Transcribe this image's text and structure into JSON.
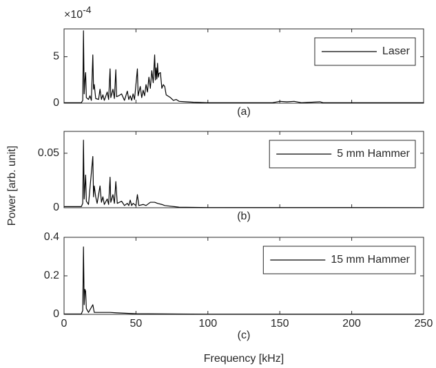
{
  "chart_data": [
    {
      "type": "line",
      "caption": "(a)",
      "y_multiplier": "×10",
      "y_multiplier_exponent": "-4",
      "x": [
        0,
        12,
        13,
        13.5,
        14,
        14.5,
        15,
        15.5,
        17,
        18,
        19,
        20,
        20.5,
        21,
        22,
        24,
        25,
        26,
        27,
        28,
        30,
        31,
        32,
        32.5,
        34,
        35,
        36,
        36.5,
        38,
        40,
        42,
        44,
        45,
        46,
        47,
        48,
        49,
        51,
        51.5,
        53,
        54,
        55,
        56,
        57,
        58,
        59,
        60,
        61,
        62,
        63,
        63.5,
        64,
        64.5,
        65,
        65.5,
        66,
        67,
        68,
        69,
        70,
        71,
        72,
        74,
        76,
        78,
        80,
        85,
        90,
        100,
        120,
        145,
        150,
        155,
        160,
        165,
        178,
        180,
        200,
        250
      ],
      "series": [
        {
          "name": "Laser",
          "color": "#000000",
          "values": [
            0.05,
            0.05,
            0.3,
            7.8,
            1.0,
            2.5,
            3.3,
            0.6,
            0.4,
            0.8,
            0.3,
            5.2,
            1.5,
            2.0,
            0.5,
            0.4,
            1.5,
            0.4,
            0.9,
            0.3,
            1.2,
            0.4,
            3.7,
            0.6,
            1.5,
            0.5,
            3.6,
            0.7,
            0.8,
            1.0,
            0.3,
            1.3,
            0.4,
            0.8,
            0.3,
            1.0,
            0.4,
            3.7,
            0.8,
            1.8,
            0.6,
            1.4,
            0.8,
            2.0,
            1.2,
            2.8,
            1.6,
            3.5,
            2.2,
            5.2,
            2.5,
            3.8,
            2.6,
            4.3,
            2.8,
            3.2,
            3.3,
            1.6,
            2.0,
            1.8,
            0.9,
            0.8,
            0.6,
            0.3,
            0.4,
            0.2,
            0.15,
            0.1,
            0.05,
            0.05,
            0.05,
            0.2,
            0.15,
            0.2,
            0.05,
            0.15,
            0.05,
            0.05,
            0.05
          ]
        }
      ],
      "xlim": [
        0,
        250
      ],
      "xticks": [
        0,
        50,
        100,
        150,
        200,
        250
      ],
      "show_xtick_labels": false,
      "ylim": [
        0,
        8
      ],
      "yticks": [
        0,
        5
      ],
      "legend": "upper right"
    },
    {
      "type": "line",
      "caption": "(b)",
      "ylabel": "Power [arb. unit]",
      "x": [
        0,
        12,
        13,
        13.5,
        14,
        14.5,
        15,
        15.5,
        16,
        17,
        20,
        20.5,
        21,
        22,
        23,
        24,
        25,
        26,
        27,
        28,
        30,
        31,
        32,
        32.5,
        34,
        35,
        36,
        37,
        40,
        42,
        44,
        45,
        46,
        47,
        48,
        50,
        51,
        52,
        55,
        57,
        60,
        63,
        65,
        68,
        70,
        80,
        100,
        250
      ],
      "series": [
        {
          "name": "5 mm Hammer",
          "color": "#000000",
          "values": [
            0.001,
            0.001,
            0.004,
            0.062,
            0.008,
            0.02,
            0.03,
            0.006,
            0.005,
            0.003,
            0.047,
            0.01,
            0.02,
            0.01,
            0.004,
            0.012,
            0.02,
            0.005,
            0.01,
            0.003,
            0.008,
            0.003,
            0.028,
            0.005,
            0.012,
            0.004,
            0.024,
            0.004,
            0.006,
            0.002,
            0.004,
            0.002,
            0.007,
            0.002,
            0.004,
            0.002,
            0.012,
            0.002,
            0.003,
            0.002,
            0.005,
            0.005,
            0.004,
            0.003,
            0.002,
            0.0005,
            0.0002,
            0.0001
          ]
        }
      ],
      "xlim": [
        0,
        250
      ],
      "xticks": [
        0,
        50,
        100,
        150,
        200,
        250
      ],
      "show_xtick_labels": false,
      "ylim": [
        0,
        0.07
      ],
      "yticks": [
        0,
        0.05
      ],
      "legend": "upper right"
    },
    {
      "type": "line",
      "caption": "(c)",
      "xlabel": "Frequency [kHz]",
      "x": [
        0,
        12,
        13,
        13.5,
        14,
        14.5,
        15,
        15.5,
        17,
        20,
        21,
        25,
        32,
        36,
        50,
        100,
        250
      ],
      "series": [
        {
          "name": "15 mm Hammer",
          "color": "#000000",
          "values": [
            0.002,
            0.002,
            0.02,
            0.35,
            0.05,
            0.13,
            0.12,
            0.03,
            0.01,
            0.05,
            0.01,
            0.01,
            0.01,
            0.008,
            0.003,
            0.001,
            0.001
          ]
        }
      ],
      "xlim": [
        0,
        250
      ],
      "xticks": [
        0,
        50,
        100,
        150,
        200,
        250
      ],
      "show_xtick_labels": true,
      "ylim": [
        0,
        0.4
      ],
      "yticks": [
        0,
        0.2,
        0.4
      ],
      "legend": "upper right"
    }
  ]
}
